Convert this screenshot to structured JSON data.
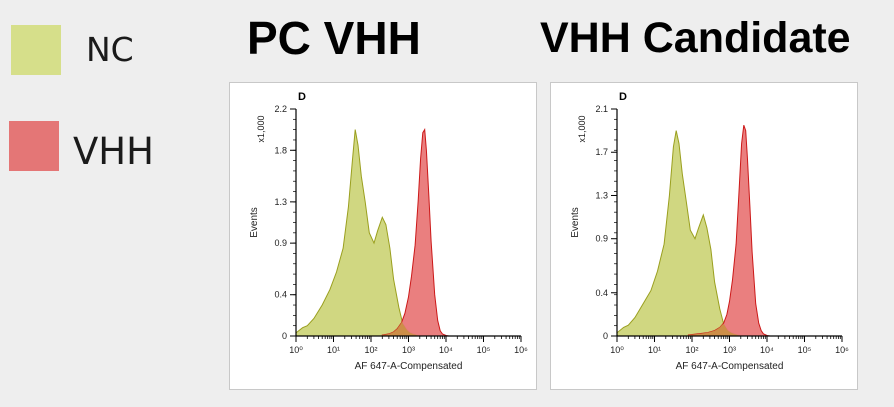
{
  "legend": {
    "items": [
      {
        "label": "NC",
        "color": "#d6df8a"
      },
      {
        "label": "VHH",
        "color": "#e47676"
      }
    ]
  },
  "panels": [
    {
      "title": "PC VHH",
      "gate_label": "D",
      "y_multiplier": "x1,000"
    },
    {
      "title": "VHH Candidate",
      "gate_label": "D",
      "y_multiplier": "x1,000"
    }
  ],
  "colors": {
    "nc_fill": "#cdd57a",
    "nc_stroke": "#9a9f1e",
    "vhh_fill": "#e97878",
    "vhh_stroke": "#cc1818",
    "overlap_fill": "#c89040"
  },
  "chart_data": [
    {
      "type": "area",
      "title": "PC VHH",
      "gate_label": "D",
      "xlabel": "AF 647-A-Compensated",
      "ylabel": "Events",
      "y_multiplier": "x1,000",
      "x_scale": "log",
      "xlim": [
        1,
        1000000
      ],
      "ylim": [
        0,
        2.2
      ],
      "x_ticks": [
        1,
        10,
        100,
        1000,
        10000,
        100000,
        1000000
      ],
      "y_ticks": [
        "0",
        "0.4",
        "0.9",
        "1.3",
        "1.8",
        "2.2"
      ],
      "y_tick_values": [
        0,
        0.4,
        0.9,
        1.3,
        1.8,
        2.2
      ],
      "grid": false,
      "series": [
        {
          "name": "NC",
          "x": [
            1,
            1.5,
            2,
            3,
            5,
            8,
            12,
            18,
            25,
            32,
            38,
            45,
            55,
            70,
            90,
            120,
            150,
            200,
            250,
            320,
            400,
            550,
            700,
            900,
            1100,
            1300,
            1600,
            2000
          ],
          "y": [
            0.03,
            0.08,
            0.1,
            0.17,
            0.3,
            0.45,
            0.62,
            0.85,
            1.25,
            1.7,
            2.0,
            1.85,
            1.55,
            1.3,
            1.0,
            0.9,
            1.02,
            1.15,
            1.08,
            0.85,
            0.55,
            0.28,
            0.12,
            0.06,
            0.03,
            0.02,
            0.01,
            0
          ]
        },
        {
          "name": "VHH",
          "x": [
            200,
            300,
            400,
            500,
            650,
            800,
            1000,
            1200,
            1500,
            1800,
            2100,
            2400,
            2700,
            3000,
            3500,
            4000,
            5000,
            6000,
            7000,
            8000,
            10000,
            12000
          ],
          "y": [
            0.01,
            0.02,
            0.04,
            0.07,
            0.13,
            0.22,
            0.38,
            0.58,
            0.88,
            1.3,
            1.72,
            1.97,
            2.0,
            1.8,
            1.35,
            0.92,
            0.4,
            0.15,
            0.05,
            0.02,
            0.005,
            0
          ]
        }
      ]
    },
    {
      "type": "area",
      "title": "VHH Candidate",
      "gate_label": "D",
      "xlabel": "AF 647-A-Compensated",
      "ylabel": "Events",
      "y_multiplier": "x1,000",
      "x_scale": "log",
      "xlim": [
        1,
        1000000
      ],
      "ylim": [
        0,
        2.1
      ],
      "x_ticks": [
        1,
        10,
        100,
        1000,
        10000,
        100000,
        1000000
      ],
      "y_ticks": [
        "0",
        "0.4",
        "0.9",
        "1.3",
        "1.7",
        "2.1"
      ],
      "y_tick_values": [
        0,
        0.4,
        0.9,
        1.3,
        1.7,
        2.1
      ],
      "grid": false,
      "series": [
        {
          "name": "NC",
          "x": [
            1,
            1.5,
            2,
            3,
            5,
            8,
            12,
            18,
            25,
            32,
            38,
            45,
            55,
            70,
            90,
            120,
            150,
            200,
            250,
            320,
            400,
            550,
            700,
            900,
            1100,
            1300,
            1600,
            2000
          ],
          "y": [
            0.03,
            0.08,
            0.1,
            0.17,
            0.3,
            0.42,
            0.6,
            0.85,
            1.3,
            1.75,
            1.9,
            1.78,
            1.5,
            1.25,
            0.98,
            0.9,
            1.0,
            1.12,
            1.0,
            0.8,
            0.5,
            0.25,
            0.11,
            0.05,
            0.03,
            0.02,
            0.01,
            0
          ]
        },
        {
          "name": "VHH",
          "x": [
            80,
            150,
            250,
            400,
            550,
            700,
            850,
            1000,
            1200,
            1500,
            1800,
            2100,
            2400,
            2700,
            3000,
            3500,
            4000,
            5000,
            6000,
            7000,
            8000,
            10000,
            12000
          ],
          "y": [
            0.01,
            0.02,
            0.03,
            0.05,
            0.08,
            0.12,
            0.2,
            0.32,
            0.52,
            0.85,
            1.35,
            1.78,
            1.95,
            1.9,
            1.65,
            1.2,
            0.78,
            0.3,
            0.12,
            0.05,
            0.02,
            0.005,
            0
          ]
        }
      ]
    }
  ]
}
